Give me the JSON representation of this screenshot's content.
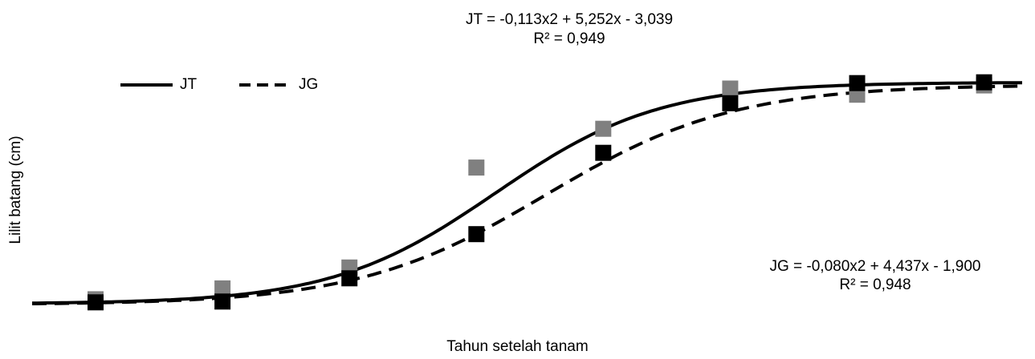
{
  "chart_data": {
    "type": "scatter",
    "xlabel": "Tahun setelah tanam",
    "ylabel": "Lilit batang (cm)",
    "grid": false,
    "legend_position": "top-left",
    "x": [
      1,
      2,
      3,
      4,
      5,
      6,
      7,
      8
    ],
    "series": [
      {
        "name": "JT",
        "line_style": "solid",
        "marker_color": "#808080",
        "line_color": "#000000",
        "values": [
          1.2,
          2.6,
          5.3,
          18.2,
          23.2,
          28.4,
          27.6,
          28.8
        ],
        "trendline": {
          "equation": "JT = -0,113x2 + 5,252x - 3,039",
          "r2": "R² = 0,949"
        }
      },
      {
        "name": "JG",
        "line_style": "dashed",
        "marker_color": "#000000",
        "line_color": "#000000",
        "values": [
          0.8,
          0.9,
          3.9,
          9.6,
          20.1,
          26.5,
          29.1,
          29.2
        ],
        "trendline": {
          "equation": "JG = -0,080x2 + 4,437x - 1,900",
          "r2": "R² = 0,948"
        }
      }
    ]
  }
}
